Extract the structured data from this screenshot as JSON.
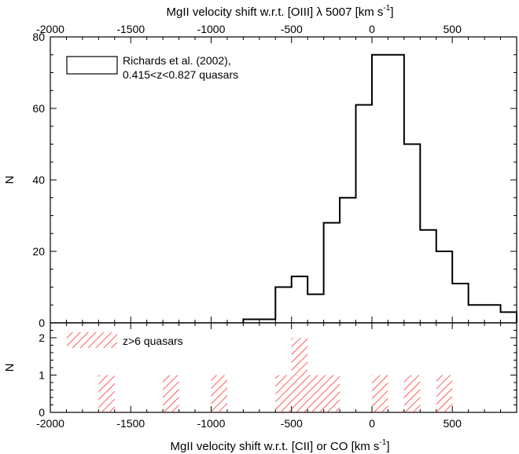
{
  "chart_data": [
    {
      "type": "histogram",
      "panel": "top",
      "xlabel": "MgII velocity shift w.r.t. [OIII] λ 5007 [km s",
      "xlabel_sup": "-1",
      "xlabel_close": "]",
      "ylabel": "N",
      "xlim": [
        -2000,
        900
      ],
      "ylim": [
        0,
        80
      ],
      "xticks": [
        -2000,
        -1500,
        -1000,
        -500,
        0,
        500
      ],
      "xtick_labels": [
        "-2000",
        "-1500",
        "-1000",
        "-500",
        "0",
        "500"
      ],
      "yticks": [
        0,
        20,
        40,
        60,
        80
      ],
      "ytick_labels": [
        "0",
        "20",
        "40",
        "60",
        "80"
      ],
      "legend_position": "top-left",
      "series": [
        {
          "name": "Richards et al. (2002),",
          "name_line2": "0.415<z<0.827 quasars",
          "color": "#000000",
          "style": "step",
          "bin_edges": [
            -800,
            -600,
            -500,
            -400,
            -300,
            -200,
            -100,
            0,
            100,
            200,
            300,
            400,
            500,
            600,
            700,
            800,
            900
          ],
          "counts": [
            1,
            10,
            13,
            8,
            28,
            35,
            61,
            75,
            75,
            50,
            26,
            20,
            11,
            5,
            5,
            3
          ]
        }
      ]
    },
    {
      "type": "histogram",
      "panel": "bottom",
      "xlabel": "MgII velocity shift w.r.t. [CII] or CO [km s",
      "xlabel_sup": "-1",
      "xlabel_close": "]",
      "ylabel": "N",
      "xlim": [
        -2000,
        900
      ],
      "ylim": [
        0,
        2.4
      ],
      "xticks": [
        -2000,
        -1500,
        -1000,
        -500,
        0,
        500
      ],
      "xtick_labels": [
        "-2000",
        "-1500",
        "-1000",
        "-500",
        "0",
        "500"
      ],
      "yticks": [
        0,
        1,
        2
      ],
      "ytick_labels": [
        "0",
        "1",
        "2"
      ],
      "legend_position": "top-left",
      "series": [
        {
          "name": "z>6 quasars",
          "color": "#ff3333",
          "style": "hatched",
          "bins": [
            {
              "x0": -1700,
              "x1": -1600,
              "count": 1
            },
            {
              "x0": -1300,
              "x1": -1200,
              "count": 1
            },
            {
              "x0": -1000,
              "x1": -900,
              "count": 1
            },
            {
              "x0": -600,
              "x1": -500,
              "count": 1
            },
            {
              "x0": -500,
              "x1": -400,
              "count": 2
            },
            {
              "x0": -400,
              "x1": -300,
              "count": 1
            },
            {
              "x0": -300,
              "x1": -200,
              "count": 1
            },
            {
              "x0": 0,
              "x1": 100,
              "count": 1
            },
            {
              "x0": 200,
              "x1": 300,
              "count": 1
            },
            {
              "x0": 400,
              "x1": 500,
              "count": 1
            }
          ]
        }
      ]
    }
  ]
}
